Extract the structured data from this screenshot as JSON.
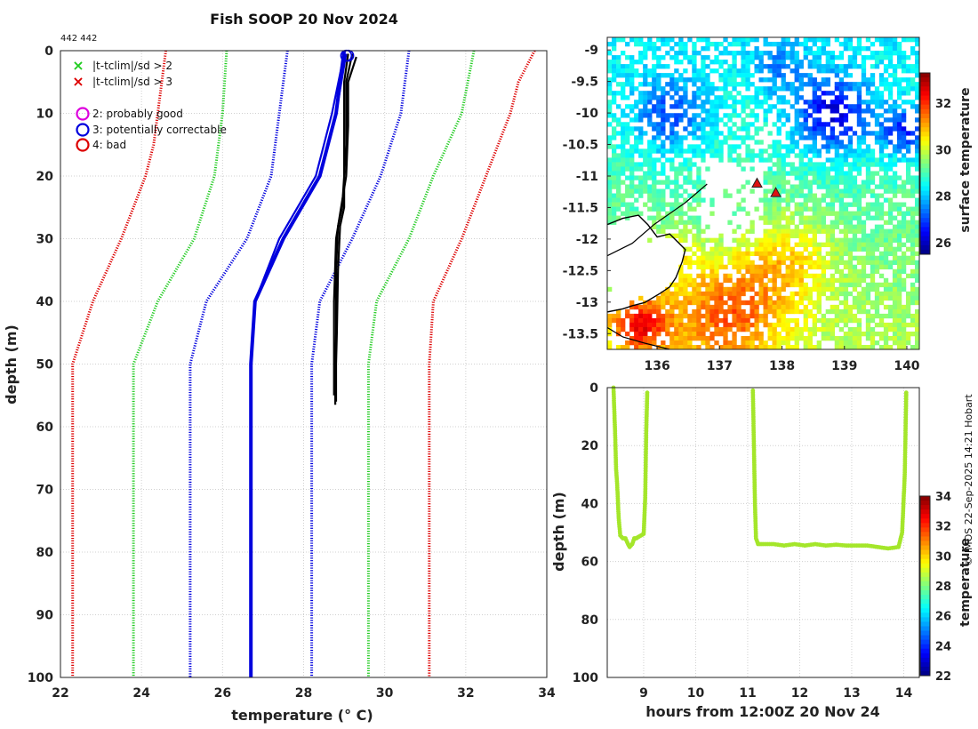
{
  "chart_data": [
    {
      "type": "line",
      "title": "Fish SOOP 20 Nov 2024",
      "counts_label": "442 442",
      "xlabel": "temperature (° C)",
      "ylabel": "depth (m)",
      "xlim": [
        22,
        34
      ],
      "ylim": [
        100,
        0
      ],
      "xticks": [
        22,
        24,
        26,
        28,
        30,
        32,
        34
      ],
      "yticks": [
        0,
        10,
        20,
        30,
        40,
        50,
        60,
        70,
        80,
        90,
        100
      ],
      "legend": [
        {
          "symbol": "×",
          "color": "#22cc22",
          "label": "|t-tclim|/sd > 2"
        },
        {
          "symbol": "×",
          "color": "#dd0000",
          "label": "|t-tclim|/sd > 3"
        },
        {
          "symbol": "○",
          "color": "#dd00dd",
          "label": "2: probably good"
        },
        {
          "symbol": "○",
          "color": "#0000dd",
          "label": "3: potentially correctable"
        },
        {
          "symbol": "○",
          "color": "#dd0000",
          "label": "4: bad"
        }
      ],
      "series": [
        {
          "name": "clim_minus3sd",
          "color": "#dd0000",
          "style": "dotted",
          "points": [
            [
              24.6,
              0
            ],
            [
              24.4,
              10
            ],
            [
              24.3,
              15
            ],
            [
              24.1,
              20
            ],
            [
              23.8,
              25
            ],
            [
              23.5,
              30
            ],
            [
              22.8,
              40
            ],
            [
              22.3,
              50
            ],
            [
              22.3,
              100
            ]
          ]
        },
        {
          "name": "clim_plus3sd",
          "color": "#dd0000",
          "style": "dotted",
          "points": [
            [
              33.7,
              0
            ],
            [
              33.3,
              5
            ],
            [
              33.1,
              10
            ],
            [
              32.5,
              20
            ],
            [
              31.9,
              30
            ],
            [
              31.2,
              40
            ],
            [
              31.1,
              50
            ],
            [
              31.1,
              100
            ]
          ]
        },
        {
          "name": "clim_minus2sd",
          "color": "#22cc22",
          "style": "dotted",
          "points": [
            [
              26.1,
              0
            ],
            [
              26.0,
              10
            ],
            [
              25.8,
              20
            ],
            [
              25.3,
              30
            ],
            [
              24.4,
              40
            ],
            [
              23.8,
              50
            ],
            [
              23.8,
              100
            ]
          ]
        },
        {
          "name": "clim_plus2sd",
          "color": "#22cc22",
          "style": "dotted",
          "points": [
            [
              32.2,
              0
            ],
            [
              31.9,
              10
            ],
            [
              31.2,
              20
            ],
            [
              30.6,
              30
            ],
            [
              29.8,
              40
            ],
            [
              29.6,
              50
            ],
            [
              29.6,
              100
            ]
          ]
        },
        {
          "name": "clim_minus1sd",
          "color": "#0000dd",
          "style": "dotted",
          "points": [
            [
              27.6,
              0
            ],
            [
              27.4,
              10
            ],
            [
              27.2,
              20
            ],
            [
              26.6,
              30
            ],
            [
              25.6,
              40
            ],
            [
              25.2,
              50
            ],
            [
              25.2,
              100
            ]
          ]
        },
        {
          "name": "clim_plus1sd",
          "color": "#0000dd",
          "style": "dotted",
          "points": [
            [
              30.6,
              0
            ],
            [
              30.4,
              10
            ],
            [
              29.9,
              20
            ],
            [
              29.2,
              30
            ],
            [
              28.4,
              40
            ],
            [
              28.2,
              50
            ],
            [
              28.2,
              100
            ]
          ]
        },
        {
          "name": "clim_mean",
          "color": "#0000dd",
          "style": "solid-thick",
          "points": [
            [
              29.0,
              0
            ],
            [
              28.8,
              10
            ],
            [
              28.4,
              20
            ],
            [
              27.5,
              30
            ],
            [
              26.8,
              40
            ],
            [
              26.7,
              50
            ],
            [
              26.7,
              100
            ]
          ]
        },
        {
          "name": "profile_1",
          "color": "#0000dd",
          "style": "solid",
          "points": [
            [
              29.05,
              0.5
            ],
            [
              28.8,
              10
            ],
            [
              28.4,
              20
            ],
            [
              27.5,
              30
            ],
            [
              26.8,
              40
            ]
          ]
        },
        {
          "name": "profile_2",
          "color": "#0000dd",
          "style": "solid",
          "points": [
            [
              29.0,
              0.5
            ],
            [
              28.7,
              10
            ],
            [
              28.3,
              20
            ],
            [
              27.4,
              30
            ],
            [
              26.8,
              40
            ]
          ]
        },
        {
          "name": "profile_3",
          "color": "#000000",
          "style": "solid",
          "points": [
            [
              29.1,
              0.5
            ],
            [
              29.0,
              5
            ],
            [
              29.0,
              10
            ],
            [
              29.0,
              15
            ],
            [
              29.0,
              20
            ],
            [
              28.95,
              25
            ],
            [
              28.85,
              28
            ],
            [
              28.8,
              35
            ],
            [
              28.8,
              45
            ],
            [
              28.78,
              50
            ],
            [
              28.78,
              56.5
            ]
          ]
        },
        {
          "name": "profile_4",
          "color": "#000000",
          "style": "solid",
          "points": [
            [
              29.2,
              0.5
            ],
            [
              29.05,
              5
            ],
            [
              29.05,
              10
            ],
            [
              29.05,
              15
            ],
            [
              29.0,
              20
            ],
            [
              29.0,
              25
            ],
            [
              28.9,
              28
            ],
            [
              28.85,
              35
            ],
            [
              28.82,
              45
            ],
            [
              28.8,
              50
            ],
            [
              28.8,
              56
            ]
          ]
        },
        {
          "name": "profile_5",
          "color": "#000000",
          "style": "solid",
          "points": [
            [
              29.3,
              1
            ],
            [
              29.1,
              5
            ],
            [
              29.1,
              12
            ],
            [
              29.05,
              20
            ],
            [
              28.9,
              26
            ],
            [
              28.8,
              30
            ],
            [
              28.75,
              40
            ],
            [
              28.75,
              55
            ]
          ]
        }
      ],
      "flag_markers": [
        {
          "x": 29.05,
          "y": 0.8,
          "color": "#0000dd"
        },
        {
          "x": 29.1,
          "y": 0.8,
          "color": "#0000dd"
        }
      ]
    },
    {
      "type": "heatmap",
      "xlim": [
        135.2,
        140.2
      ],
      "ylim": [
        -13.75,
        -8.8
      ],
      "xticks": [
        136,
        137,
        138,
        139,
        140
      ],
      "yticks": [
        -9,
        -9.5,
        -10,
        -10.5,
        -11,
        -11.5,
        -12,
        -12.5,
        -13,
        -13.5
      ],
      "colorbar_label": "surface temperature",
      "colorbar_range": [
        25.5,
        33.3
      ],
      "colorbar_ticks": [
        26,
        28,
        30,
        32
      ],
      "stations": [
        {
          "lon": 137.6,
          "lat": -11.12
        },
        {
          "lon": 137.9,
          "lat": -11.27
        }
      ]
    },
    {
      "type": "scatter",
      "xlabel": "hours from 12:00Z 20 Nov 24",
      "ylabel": "depth (m)",
      "xlim": [
        8.3,
        14.3
      ],
      "ylim": [
        100,
        0
      ],
      "xticks": [
        9,
        10,
        11,
        12,
        13,
        14
      ],
      "yticks": [
        0,
        20,
        40,
        60,
        80,
        100
      ],
      "colorbar_label": "temperature",
      "colorbar_range": [
        22,
        34
      ],
      "colorbar_ticks": [
        22,
        24,
        26,
        28,
        30,
        32,
        34
      ],
      "marker_color": "#a4e62a",
      "segments": [
        [
          [
            8.42,
            0
          ],
          [
            8.45,
            15
          ],
          [
            8.47,
            28
          ],
          [
            8.49,
            33
          ],
          [
            8.52,
            45
          ],
          [
            8.55,
            51
          ],
          [
            8.6,
            52
          ],
          [
            8.65,
            52
          ],
          [
            8.7,
            54
          ],
          [
            8.73,
            55
          ],
          [
            8.78,
            54
          ],
          [
            8.82,
            52
          ],
          [
            8.86,
            52
          ],
          [
            8.9,
            51.5
          ],
          [
            8.95,
            51
          ],
          [
            9.0,
            50.5
          ],
          [
            9.03,
            38
          ],
          [
            9.05,
            15
          ],
          [
            9.07,
            1
          ]
        ],
        [
          [
            11.1,
            1
          ],
          [
            11.12,
            20
          ],
          [
            11.14,
            40
          ],
          [
            11.16,
            52
          ],
          [
            11.2,
            54
          ],
          [
            11.3,
            54
          ],
          [
            11.5,
            54
          ],
          [
            11.7,
            54.5
          ],
          [
            11.9,
            54
          ],
          [
            12.1,
            54.5
          ],
          [
            12.3,
            54
          ],
          [
            12.5,
            54.5
          ],
          [
            12.7,
            54.2
          ],
          [
            12.9,
            54.5
          ],
          [
            13.1,
            54.5
          ],
          [
            13.3,
            54.5
          ],
          [
            13.5,
            55
          ],
          [
            13.7,
            55.5
          ],
          [
            13.9,
            55
          ],
          [
            13.97,
            50
          ],
          [
            14.02,
            30
          ],
          [
            14.05,
            1
          ]
        ]
      ]
    }
  ],
  "credit": "© IMOS 22-Sep-2025 14:21 Hobart"
}
